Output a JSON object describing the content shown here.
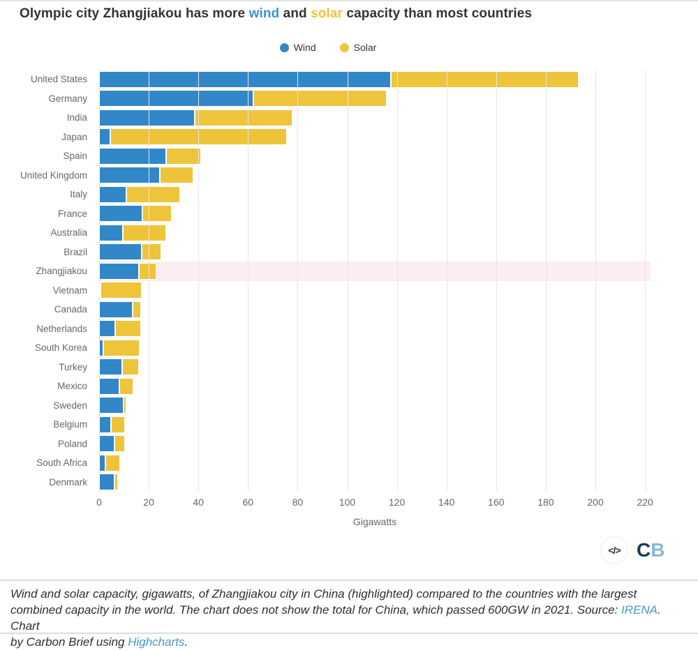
{
  "title": {
    "part1": "Olympic city Zhangjiakou has more ",
    "wind_word": "wind",
    "part2": " and ",
    "solar_word": "solar",
    "part3": " capacity than most countries"
  },
  "colors": {
    "wind": "#3187c8",
    "solar": "#eec43b",
    "highlight_band": "#fcedf0",
    "grid": "#e6e6e6",
    "zero_line": "#cccccc",
    "link": "#4a94cc",
    "title_wind": "#3a93d2",
    "title_solar": "#edc43a"
  },
  "chart_data": {
    "type": "bar",
    "stacked": true,
    "title": "Olympic city Zhangjiakou has more wind and solar capacity than most countries",
    "xlabel": "Gigawatts",
    "grid": true,
    "legend_position": "top",
    "xlim": [
      0,
      222.2
    ],
    "x_ticks": [
      0,
      20,
      40,
      60,
      80,
      100,
      120,
      140,
      160,
      180,
      200,
      220
    ],
    "categories": [
      "United States",
      "Germany",
      "India",
      "Japan",
      "Spain",
      "United Kingdom",
      "Italy",
      "France",
      "Australia",
      "Brazil",
      "Zhangjiakou",
      "Vietnam",
      "Canada",
      "Netherlands",
      "South Korea",
      "Turkey",
      "Mexico",
      "Sweden",
      "Belgium",
      "Poland",
      "South Africa",
      "Denmark"
    ],
    "series": [
      {
        "name": "Wind",
        "color": "#3187c8",
        "values": [
          117.7,
          62.2,
          38.6,
          4.4,
          27.1,
          24.5,
          10.9,
          17.5,
          9.5,
          17.2,
          16.0,
          0.6,
          13.6,
          6.6,
          1.6,
          9.3,
          8.1,
          9.8,
          4.7,
          6.3,
          2.6,
          6.2
        ]
      },
      {
        "name": "Solar",
        "color": "#eec43b",
        "values": [
          75.6,
          53.8,
          39.2,
          71.4,
          14.1,
          13.6,
          21.7,
          11.7,
          17.6,
          7.9,
          7.0,
          16.7,
          3.3,
          10.2,
          14.6,
          6.7,
          5.6,
          1.1,
          5.6,
          4.0,
          5.9,
          1.3
        ]
      }
    ],
    "highlight_category": "Zhangjiakou",
    "highlight_color": "#fcedf0"
  },
  "branding": {
    "code_icon": "</>",
    "logo_c": "C",
    "logo_b": "B"
  },
  "caption": {
    "line1": "Wind and solar capacity, gigawatts, of Zhangjiakou city in China (highlighted) compared to the countries with the largest",
    "line2_pre": "combined capacity in the world. The chart does not show the total for China, which passed 600GW in 2021. Source: ",
    "link_irena": "IRENA",
    "line2_post": ". Chart",
    "line3_pre": "by Carbon Brief using ",
    "link_highcharts": "Highcharts",
    "line3_post": "."
  }
}
